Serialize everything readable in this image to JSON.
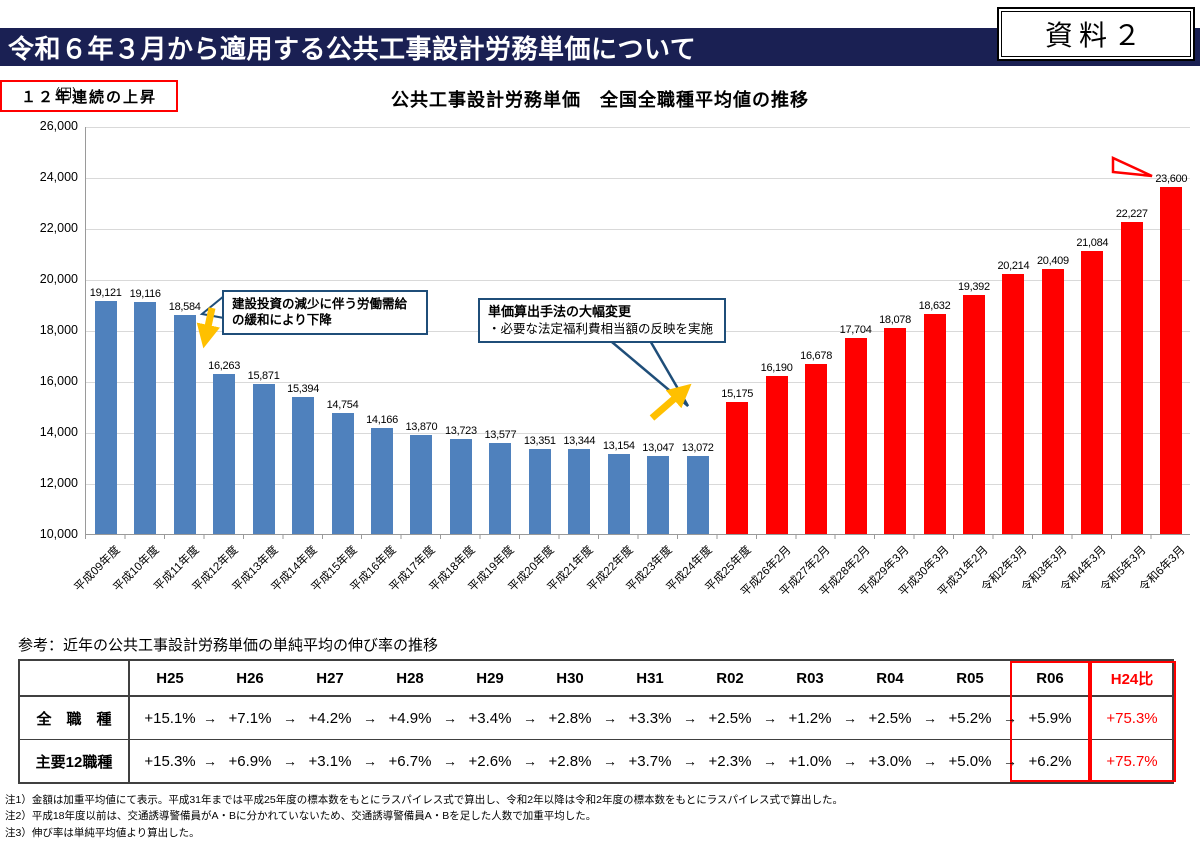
{
  "header": {
    "title": "令和６年３月から適用する公共工事設計労務単価について",
    "doc_label": "資料２"
  },
  "chart": {
    "title": "公共工事設計労務単価　全国全職種平均値の推移",
    "unit_label": "（円）",
    "annotations": {
      "decline": "建設投資の減少に伴う労働需給の緩和により下降",
      "method_change_title": "単価算出手法の大幅変更",
      "method_change_body": "・必要な法定福利費相当額の反映を実施",
      "rise_streak": "１２年連続の上昇"
    },
    "colors": {
      "blue": "#4F81BD",
      "red": "#FF0000",
      "callout_border": "#1F4E79",
      "arrow_yellow": "#FFC000"
    }
  },
  "chart_data": {
    "type": "bar",
    "title": "公共工事設計労務単価　全国全職種平均値の推移",
    "ylabel": "（円）",
    "ylim": [
      10000,
      26000
    ],
    "ytick_step": 2000,
    "grid": true,
    "categories": [
      "平成09年度",
      "平成10年度",
      "平成11年度",
      "平成12年度",
      "平成13年度",
      "平成14年度",
      "平成15年度",
      "平成16年度",
      "平成17年度",
      "平成18年度",
      "平成19年度",
      "平成20年度",
      "平成21年度",
      "平成22年度",
      "平成23年度",
      "平成24年度",
      "平成25年度",
      "平成26年2月",
      "平成27年2月",
      "平成28年2月",
      "平成29年3月",
      "平成30年3月",
      "平成31年2月",
      "令和2年3月",
      "令和3年3月",
      "令和4年3月",
      "令和5年3月",
      "令和6年3月"
    ],
    "values": [
      19121,
      19116,
      18584,
      16263,
      15871,
      15394,
      14754,
      14166,
      13870,
      13723,
      13577,
      13351,
      13344,
      13154,
      13047,
      13072,
      15175,
      16190,
      16678,
      17704,
      18078,
      18632,
      19392,
      20214,
      20409,
      21084,
      22227,
      23600
    ],
    "red_from_index": 16
  },
  "table": {
    "caption": "参考：近年の公共工事設計労務単価の単純平均の伸び率の推移",
    "columns": [
      "H25",
      "H26",
      "H27",
      "H28",
      "H29",
      "H30",
      "H31",
      "R02",
      "R03",
      "R04",
      "R05",
      "R06",
      "H24比"
    ],
    "arrow": "→",
    "rows": [
      {
        "label": "全　職　種",
        "values": [
          "+15.1%",
          "+7.1%",
          "+4.2%",
          "+4.9%",
          "+3.4%",
          "+2.8%",
          "+3.3%",
          "+2.5%",
          "+1.2%",
          "+2.5%",
          "+5.2%",
          "+5.9%"
        ],
        "h24": "+75.3%"
      },
      {
        "label": "主要12職種",
        "values": [
          "+15.3%",
          "+6.9%",
          "+3.1%",
          "+6.7%",
          "+2.6%",
          "+2.8%",
          "+3.7%",
          "+2.3%",
          "+1.0%",
          "+3.0%",
          "+5.0%",
          "+6.2%"
        ],
        "h24": "+75.7%"
      }
    ]
  },
  "footnotes": [
    "注1）金額は加重平均値にて表示。平成31年までは平成25年度の標本数をもとにラスパイレス式で算出し、令和2年以降は令和2年度の標本数をもとにラスパイレス式で算出した。",
    "注2）平成18年度以前は、交通誘導警備員がA・Bに分かれていないため、交通誘導警備員A・Bを足した人数で加重平均した。",
    "注3）伸び率は単純平均値より算出した。"
  ]
}
